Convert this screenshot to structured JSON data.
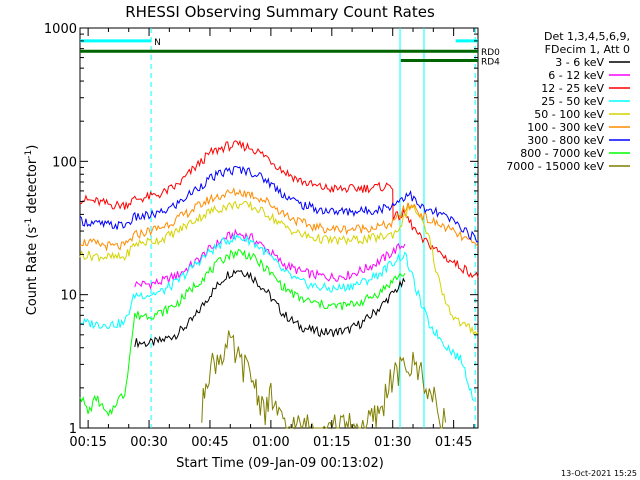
{
  "chart_data": {
    "type": "line",
    "title": "RHESSI Observing Summary Count Rates",
    "xlabel": "Start Time (09-Jan-09 00:13:02)",
    "ylabel_parts": [
      "Count Rate (s",
      "-1",
      " detector",
      "-1",
      ")"
    ],
    "y_scale": "log",
    "ylim": [
      1,
      1000
    ],
    "xlim_minutes": [
      0,
      98
    ],
    "x_ticks": [
      {
        "min": 2,
        "label": "00:15"
      },
      {
        "min": 17,
        "label": "00:30"
      },
      {
        "min": 32,
        "label": "00:45"
      },
      {
        "min": 47,
        "label": "01:00"
      },
      {
        "min": 62,
        "label": "01:15"
      },
      {
        "min": 77,
        "label": "01:30"
      },
      {
        "min": 92,
        "label": "01:45"
      }
    ],
    "y_ticks": [
      {
        "value": 1,
        "label": "1"
      },
      {
        "value": 10,
        "label": "10"
      },
      {
        "value": 100,
        "label": "100"
      },
      {
        "value": 1000,
        "label": "1000"
      }
    ],
    "legend_header": [
      "Det 1,3,4,5,6,9,",
      "FDecim 1, Att 0"
    ],
    "legend_placement": "top-right, outside plot",
    "series": [
      {
        "name": "3 - 6 keV",
        "color": "#000000",
        "points": [
          [
            13.5,
            4.4
          ],
          [
            17,
            4.3
          ],
          [
            20,
            4.5
          ],
          [
            24,
            5.1
          ],
          [
            28,
            6.6
          ],
          [
            32,
            10
          ],
          [
            36,
            14
          ],
          [
            39,
            15.5
          ],
          [
            42,
            14
          ],
          [
            46,
            10.5
          ],
          [
            50,
            7.2
          ],
          [
            54,
            5.8
          ],
          [
            58,
            5.3
          ],
          [
            62,
            5.2
          ],
          [
            66,
            5.4
          ],
          [
            70,
            6.3
          ],
          [
            74,
            8.1
          ],
          [
            78,
            11
          ],
          [
            80,
            12.5
          ]
        ]
      },
      {
        "name": "6 - 12 keV",
        "color": "#ff00ff",
        "points": [
          [
            13.5,
            12
          ],
          [
            17,
            12
          ],
          [
            20,
            12.5
          ],
          [
            24,
            14
          ],
          [
            28,
            17
          ],
          [
            32,
            22
          ],
          [
            36,
            27
          ],
          [
            39,
            28.5
          ],
          [
            42,
            27
          ],
          [
            46,
            22
          ],
          [
            50,
            17
          ],
          [
            54,
            15
          ],
          [
            58,
            14
          ],
          [
            62,
            13.5
          ],
          [
            66,
            14
          ],
          [
            70,
            15.5
          ],
          [
            74,
            18
          ],
          [
            78,
            22
          ],
          [
            80,
            24
          ]
        ]
      },
      {
        "name": "12 - 25 keV",
        "color": "#ff0000",
        "points": [
          [
            0,
            52
          ],
          [
            4,
            50
          ],
          [
            8,
            47
          ],
          [
            11,
            47
          ],
          [
            13.5,
            52
          ],
          [
            17,
            54
          ],
          [
            20,
            57
          ],
          [
            24,
            66
          ],
          [
            28,
            88
          ],
          [
            32,
            115
          ],
          [
            36,
            130
          ],
          [
            39,
            132
          ],
          [
            42,
            127
          ],
          [
            46,
            108
          ],
          [
            50,
            85
          ],
          [
            54,
            72
          ],
          [
            58,
            65
          ],
          [
            62,
            62
          ],
          [
            66,
            62
          ],
          [
            70,
            63
          ],
          [
            74,
            64
          ],
          [
            77,
            66
          ],
          [
            77.1,
            38
          ],
          [
            80,
            40
          ],
          [
            84,
            26
          ],
          [
            86,
            24
          ],
          [
            90,
            19
          ],
          [
            94,
            16
          ],
          [
            98,
            13.5
          ]
        ]
      },
      {
        "name": "25 - 50 keV",
        "color": "#00ffff",
        "points": [
          [
            0,
            6.2
          ],
          [
            4,
            6
          ],
          [
            8,
            6
          ],
          [
            11,
            6.1
          ],
          [
            13.5,
            10
          ],
          [
            17,
            10
          ],
          [
            20,
            10.5
          ],
          [
            24,
            12.5
          ],
          [
            28,
            16.5
          ],
          [
            32,
            21
          ],
          [
            36,
            25.5
          ],
          [
            39,
            27
          ],
          [
            42,
            25.5
          ],
          [
            46,
            20.5
          ],
          [
            50,
            15
          ],
          [
            54,
            12.5
          ],
          [
            58,
            11.5
          ],
          [
            62,
            11
          ],
          [
            66,
            11.5
          ],
          [
            70,
            12.5
          ],
          [
            74,
            14.5
          ],
          [
            78,
            18.5
          ],
          [
            80,
            20
          ],
          [
            84,
            8.5
          ],
          [
            86,
            6
          ],
          [
            90,
            4.2
          ],
          [
            94,
            3.2
          ],
          [
            97,
            1.6
          ]
        ]
      },
      {
        "name": "50 - 100 keV",
        "color": "#d4d400",
        "points": [
          [
            0,
            20
          ],
          [
            4,
            19.5
          ],
          [
            8,
            19
          ],
          [
            11,
            19
          ],
          [
            13.5,
            24
          ],
          [
            17,
            25
          ],
          [
            20,
            26
          ],
          [
            24,
            30
          ],
          [
            28,
            36
          ],
          [
            32,
            42
          ],
          [
            36,
            46
          ],
          [
            39,
            47.5
          ],
          [
            42,
            46
          ],
          [
            46,
            40.5
          ],
          [
            50,
            33
          ],
          [
            54,
            28.5
          ],
          [
            58,
            26.5
          ],
          [
            62,
            25.5
          ],
          [
            66,
            25.5
          ],
          [
            70,
            26
          ],
          [
            74,
            27
          ],
          [
            77,
            28.5
          ],
          [
            78,
            30
          ],
          [
            80,
            38
          ],
          [
            81,
            47
          ],
          [
            83,
            42
          ],
          [
            86,
            26
          ],
          [
            88,
            14
          ],
          [
            90,
            9
          ],
          [
            92,
            6.8
          ],
          [
            94,
            6
          ],
          [
            98,
            5.2
          ]
        ]
      },
      {
        "name": "100 - 300 keV",
        "color": "#ff8c00",
        "points": [
          [
            0,
            25
          ],
          [
            4,
            24
          ],
          [
            8,
            23
          ],
          [
            11,
            23
          ],
          [
            13.5,
            28
          ],
          [
            17,
            30
          ],
          [
            20,
            32
          ],
          [
            24,
            37
          ],
          [
            28,
            44
          ],
          [
            32,
            52
          ],
          [
            36,
            57
          ],
          [
            39,
            59
          ],
          [
            42,
            57
          ],
          [
            46,
            50
          ],
          [
            50,
            41
          ],
          [
            54,
            35
          ],
          [
            58,
            32
          ],
          [
            62,
            31
          ],
          [
            66,
            31
          ],
          [
            70,
            31.5
          ],
          [
            74,
            32.5
          ],
          [
            77,
            34
          ],
          [
            80,
            44
          ],
          [
            82,
            47
          ],
          [
            84,
            40
          ],
          [
            86,
            36
          ],
          [
            90,
            32
          ],
          [
            94,
            27
          ],
          [
            98,
            23
          ]
        ]
      },
      {
        "name": "300 - 800 keV",
        "color": "#0000ff",
        "points": [
          [
            0,
            36
          ],
          [
            4,
            34
          ],
          [
            8,
            33
          ],
          [
            11,
            33
          ],
          [
            13.5,
            38
          ],
          [
            17,
            39
          ],
          [
            20,
            41
          ],
          [
            24,
            48
          ],
          [
            28,
            60
          ],
          [
            32,
            74
          ],
          [
            36,
            84
          ],
          [
            39,
            87
          ],
          [
            42,
            84
          ],
          [
            46,
            72
          ],
          [
            50,
            57
          ],
          [
            54,
            48
          ],
          [
            58,
            44
          ],
          [
            62,
            42
          ],
          [
            66,
            42
          ],
          [
            70,
            42.5
          ],
          [
            74,
            44
          ],
          [
            77,
            47
          ],
          [
            80,
            55
          ],
          [
            81,
            58
          ],
          [
            83,
            48
          ],
          [
            85,
            43
          ],
          [
            88,
            41
          ],
          [
            91,
            37
          ],
          [
            94,
            32
          ],
          [
            98,
            25
          ]
        ]
      },
      {
        "name": "800 - 7000 keV",
        "color": "#00ff00",
        "points": [
          [
            0,
            1.8
          ],
          [
            2,
            1.3
          ],
          [
            4,
            1.7
          ],
          [
            7,
            1.2
          ],
          [
            9,
            1.6
          ],
          [
            11,
            1.8
          ],
          [
            13.5,
            7
          ],
          [
            17,
            7
          ],
          [
            20,
            7.3
          ],
          [
            24,
            8.6
          ],
          [
            28,
            11.5
          ],
          [
            32,
            15
          ],
          [
            36,
            19.5
          ],
          [
            39,
            21
          ],
          [
            42,
            19.5
          ],
          [
            46,
            15.5
          ],
          [
            50,
            11.5
          ],
          [
            54,
            9.4
          ],
          [
            58,
            8.6
          ],
          [
            62,
            8.2
          ],
          [
            66,
            8.3
          ],
          [
            70,
            9
          ],
          [
            74,
            10.5
          ],
          [
            78,
            13.5
          ],
          [
            80,
            14.5
          ]
        ]
      },
      {
        "name": "7000 - 15000 keV",
        "color": "#7f7f00",
        "points": [
          [
            30,
            1.2
          ],
          [
            31,
            2.5
          ],
          [
            33,
            3.1
          ],
          [
            35,
            3.7
          ],
          [
            37,
            4.2
          ],
          [
            39,
            3.2
          ],
          [
            41,
            2.7
          ],
          [
            43,
            2.2
          ],
          [
            44,
            1.7
          ],
          [
            46,
            1.3
          ],
          [
            47,
            1.8
          ],
          [
            49,
            1.2
          ],
          [
            50,
            1.0
          ],
          [
            53,
            1.0
          ],
          [
            56,
            1.0
          ],
          [
            59,
            1.0
          ],
          [
            62,
            1.0
          ],
          [
            66,
            1.0
          ],
          [
            70,
            1.0
          ],
          [
            74,
            1.3
          ],
          [
            76,
            2.2
          ],
          [
            78,
            2.5
          ],
          [
            80,
            2.9
          ],
          [
            82,
            2.9
          ],
          [
            84,
            2.7
          ],
          [
            86,
            1.8
          ],
          [
            88,
            1.4
          ],
          [
            90,
            1.1
          ]
        ]
      }
    ],
    "bars": [
      {
        "label": "N",
        "color": "#00ffff",
        "x0": 0,
        "x1": 17.5,
        "y": 800
      },
      {
        "label": "RD0",
        "color": "#006400",
        "x0": 0,
        "x1": 98,
        "y": 670
      },
      {
        "label": "",
        "color": "#00ffff",
        "x0": 92.5,
        "x1": 98,
        "y": 800
      },
      {
        "label": "RD4",
        "color": "#006400",
        "x0": 79,
        "x1": 98,
        "y": 570
      }
    ],
    "vertical_lines": [
      {
        "x": 17.5,
        "style": "dashed",
        "color": "#00ffff"
      },
      {
        "x": 78.8,
        "style": "solid",
        "color": "#00ffff"
      },
      {
        "x": 84.7,
        "style": "solid",
        "color": "#00ffff"
      },
      {
        "x": 97.3,
        "style": "dashed",
        "color": "#00ffff"
      }
    ]
  },
  "footer": {
    "timestamp": "13-Oct-2021 15:25"
  }
}
